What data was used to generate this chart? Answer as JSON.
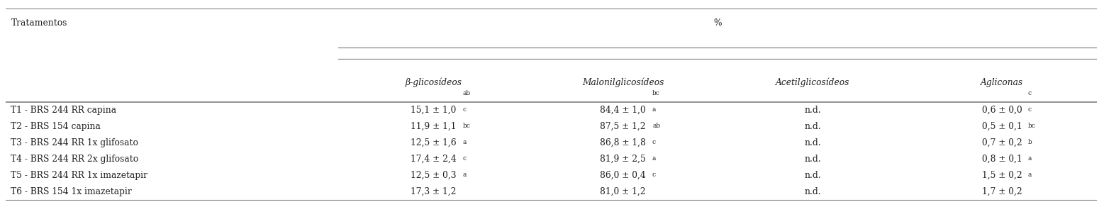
{
  "header_col": "Tratamentos",
  "header_pct": "%",
  "subheaders": [
    "β-glicosídeos",
    "Malonilglicosídeos",
    "Acetilglicosídeos",
    "Agliconas"
  ],
  "rows": [
    [
      "T1 - BRS 244 RR capina",
      "15,1 ± 1,0",
      "ab",
      "84,4 ± 1,0",
      "bc",
      "n.d.",
      "",
      "0,6 ± 0,0",
      "c"
    ],
    [
      "T2 - BRS 154 capina",
      "11,9 ± 1,1",
      "c",
      "87,5 ± 1,2",
      "a",
      "n.d.",
      "",
      "0,5 ± 0,1",
      "c"
    ],
    [
      "T3 - BRS 244 RR 1x glifosato",
      "12,5 ± 1,6",
      "bc",
      "86,8 ± 1,8",
      "ab",
      "n.d.",
      "",
      "0,7 ± 0,2",
      "bc"
    ],
    [
      "T4 - BRS 244 RR 2x glifosato",
      "17,4 ± 2,4",
      "a",
      "81,9 ± 2,5",
      "c",
      "n.d.",
      "",
      "0,8 ± 0,1",
      "b"
    ],
    [
      "T5 - BRS 244 RR 1x imazetapir",
      "12,5 ± 0,3",
      "c",
      "86,0 ± 0,4",
      "a",
      "n.d.",
      "",
      "1,5 ± 0,2",
      "a"
    ],
    [
      "T6 - BRS 154 1x imazetapir",
      "17,3 ± 1,2",
      "a",
      "81,0 ± 1,2",
      "c",
      "n.d.",
      "",
      "1,7 ± 0,2",
      "a"
    ]
  ],
  "bg_color": "#ffffff",
  "text_color": "#222222",
  "line_color": "#888888",
  "font_size": 8.8,
  "sup_font_size": 6.5,
  "font_family": "DejaVu Serif"
}
